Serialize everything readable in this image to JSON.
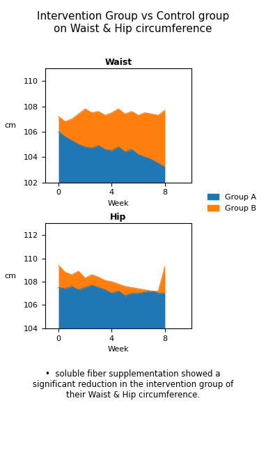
{
  "title": "Intervention Group vs Control group\non Waist & Hip circumference",
  "annotation": "•  soluble fiber supplementation showed a\nsignificant reduction in the intervention group of\ntheir Waist & Hip circumference.",
  "legend": "center right",
  "chart_data": [
    {
      "type": "area",
      "title": "Waist",
      "x_label": "Week",
      "y_label": "cm",
      "x": [
        0,
        0.5,
        1.0,
        1.5,
        2.0,
        2.5,
        3.0,
        3.5,
        4.0,
        4.5,
        5.0,
        5.5,
        6.0,
        6.5,
        7.0,
        7.5,
        8.0
      ],
      "xlim": [
        -1,
        10
      ],
      "xticks": [
        0,
        4,
        8
      ],
      "ylim": [
        102,
        111
      ],
      "yticks": [
        102,
        104,
        106,
        108,
        110
      ],
      "series": [
        {
          "name": "Group A",
          "values": [
            106.0,
            105.6,
            105.3,
            105.0,
            104.8,
            104.7,
            104.9,
            104.6,
            104.5,
            104.8,
            104.4,
            104.6,
            104.2,
            104.0,
            103.8,
            103.5,
            103.2
          ]
        },
        {
          "name": "Group B",
          "values": [
            107.2,
            106.8,
            107.0,
            107.4,
            107.8,
            107.5,
            107.6,
            107.3,
            107.5,
            107.8,
            107.4,
            107.6,
            107.3,
            107.5,
            107.4,
            107.3,
            107.7
          ]
        }
      ]
    },
    {
      "type": "area",
      "title": "Hip",
      "x_label": "Week",
      "y_label": "cm",
      "x": [
        0,
        0.5,
        1.0,
        1.5,
        2.0,
        2.5,
        3.0,
        3.5,
        4.0,
        4.5,
        5.0,
        5.5,
        6.0,
        6.5,
        7.0,
        7.5,
        8.0
      ],
      "xlim": [
        -1,
        10
      ],
      "xticks": [
        0,
        4,
        8
      ],
      "ylim": [
        104,
        113
      ],
      "yticks": [
        104,
        106,
        108,
        110,
        112
      ],
      "series": [
        {
          "name": "Group A",
          "values": [
            107.5,
            107.4,
            107.6,
            107.3,
            107.5,
            107.7,
            107.5,
            107.3,
            107.0,
            107.2,
            106.8,
            107.0,
            107.0,
            107.1,
            107.2,
            107.0,
            107.0
          ]
        },
        {
          "name": "Group B",
          "values": [
            109.4,
            108.8,
            108.6,
            108.9,
            108.3,
            108.6,
            108.4,
            108.1,
            108.0,
            107.8,
            107.6,
            107.5,
            107.4,
            107.3,
            107.2,
            107.2,
            109.3
          ]
        }
      ]
    }
  ]
}
